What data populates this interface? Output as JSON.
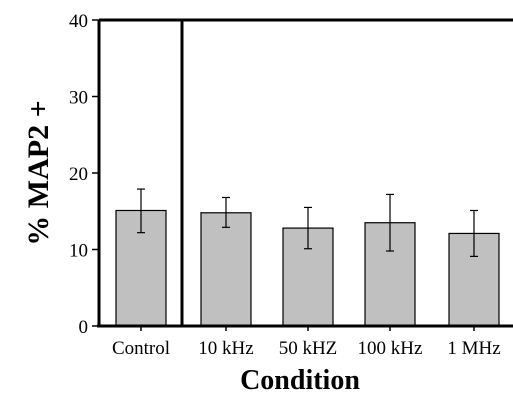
{
  "chart_data": {
    "type": "bar",
    "xlabel": "Condition",
    "ylabel": "% MAP2 +",
    "ylim": [
      0,
      40
    ],
    "yticks": [
      "0",
      "10",
      "20",
      "30",
      "40"
    ],
    "categories": [
      "Control",
      "10 kHz",
      "50 kHZ",
      "100 kHz",
      "1 MHz"
    ],
    "values": [
      15.1,
      14.8,
      12.8,
      13.5,
      12.1
    ],
    "error_low": [
      12.2,
      12.9,
      10.1,
      9.8,
      9.1
    ],
    "error_high": [
      17.9,
      16.8,
      15.5,
      17.2,
      15.1
    ],
    "error_bars": true,
    "bar_color": "#c0c0c0",
    "divider_after_category": "Control",
    "grid": false,
    "legend": "none"
  }
}
